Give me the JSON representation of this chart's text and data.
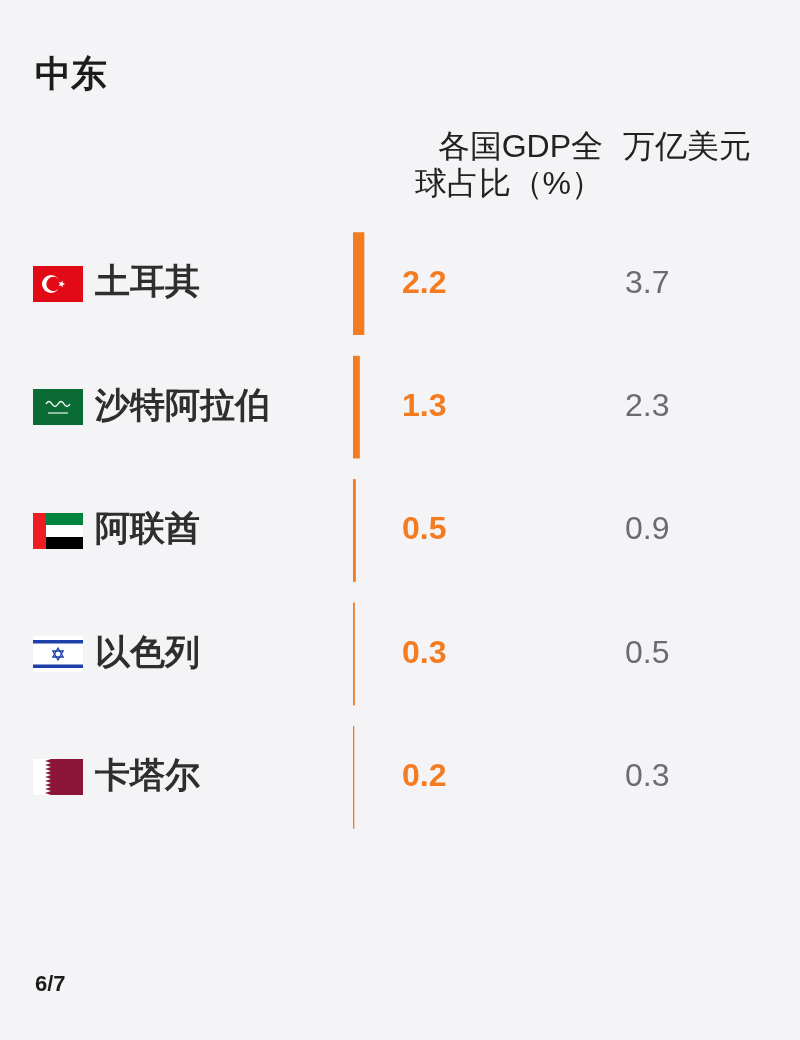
{
  "chart_data": [
    {
      "type": "bar",
      "orientation": "horizontal",
      "title": "中东",
      "categories": [
        "土耳其",
        "沙特阿拉伯",
        "阿联酋",
        "以色列",
        "卡塔尔"
      ],
      "series": [
        {
          "name": "各国GDP全球占比（%）",
          "color": "#f47b20",
          "values": [
            2.2,
            1.3,
            0.5,
            0.3,
            0.2
          ]
        }
      ],
      "data_labels": true,
      "tick_labels": "y",
      "annotations": [
        "6/7"
      ]
    },
    {
      "type": "other",
      "title": "万亿美元",
      "values": [
        3.7,
        2.3,
        0.9,
        0.5,
        0.3
      ],
      "data_labels": true
    }
  ]
}
